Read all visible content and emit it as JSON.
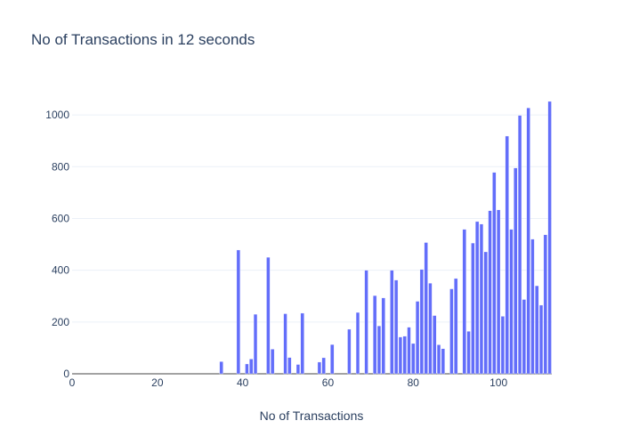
{
  "chart_data": {
    "type": "bar",
    "title": "No of Transactions in 12 seconds",
    "xlabel": "No of Transactions",
    "ylabel": "",
    "xlim": [
      0,
      112.5
    ],
    "ylim": [
      0,
      1100
    ],
    "x_ticks": [
      0,
      20,
      40,
      60,
      80,
      100
    ],
    "y_ticks": [
      0,
      200,
      400,
      600,
      800,
      1000
    ],
    "grid": true,
    "bar_color": "#636efa",
    "x": [
      35,
      39,
      41,
      42,
      43,
      46,
      47,
      50,
      51,
      53,
      54,
      58,
      59,
      61,
      65,
      67,
      69,
      71,
      72,
      73,
      75,
      76,
      77,
      78,
      79,
      80,
      81,
      82,
      83,
      84,
      85,
      86,
      87,
      89,
      90,
      92,
      93,
      94,
      95,
      96,
      97,
      98,
      99,
      100,
      101,
      102,
      103,
      104,
      105,
      106,
      107,
      108,
      109,
      110,
      111,
      112
    ],
    "values": [
      47,
      478,
      38,
      57,
      230,
      450,
      95,
      232,
      63,
      36,
      234,
      45,
      62,
      113,
      172,
      237,
      400,
      302,
      185,
      293,
      400,
      362,
      142,
      145,
      180,
      117,
      280,
      403,
      507,
      350,
      225,
      112,
      97,
      328,
      368,
      558,
      164,
      505,
      588,
      578,
      471,
      630,
      778,
      633,
      222,
      918,
      558,
      795,
      998,
      287,
      1027,
      520,
      340,
      265,
      537,
      1052
    ]
  }
}
